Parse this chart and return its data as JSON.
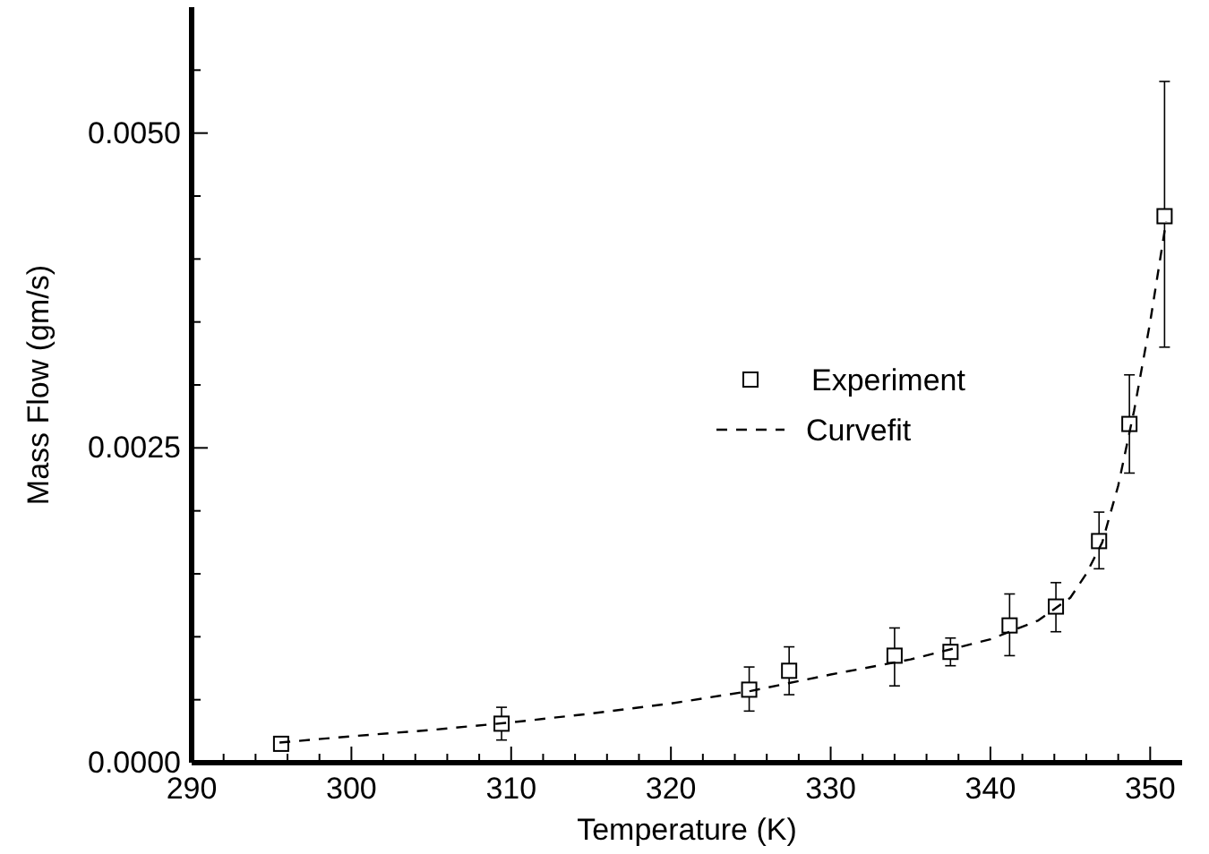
{
  "chart_data": {
    "type": "scatter",
    "xlabel": "Temperature (K)",
    "ylabel": "Mass Flow (gm/s)",
    "xlim": [
      290,
      352
    ],
    "xticks": [
      290,
      {
        "value": 292,
        "label": null
      },
      {
        "value": 294,
        "label": null
      },
      {
        "value": 296,
        "label": null
      },
      {
        "value": 298,
        "label": null
      },
      300,
      {
        "value": 302,
        "label": null
      },
      {
        "value": 304,
        "label": null
      },
      {
        "value": 306,
        "label": null
      },
      {
        "value": 308,
        "label": null
      },
      310,
      {
        "value": 312,
        "label": null
      },
      {
        "value": 314,
        "label": null
      },
      {
        "value": 316,
        "label": null
      },
      {
        "value": 318,
        "label": null
      },
      320,
      {
        "value": 322,
        "label": null
      },
      {
        "value": 324,
        "label": null
      },
      {
        "value": 326,
        "label": null
      },
      {
        "value": 328,
        "label": null
      },
      330,
      {
        "value": 332,
        "label": null
      },
      {
        "value": 334,
        "label": null
      },
      {
        "value": 336,
        "label": null
      },
      {
        "value": 338,
        "label": null
      },
      340,
      {
        "value": 342,
        "label": null
      },
      {
        "value": 344,
        "label": null
      },
      {
        "value": 346,
        "label": null
      },
      {
        "value": 348,
        "label": null
      },
      350
    ],
    "ylim": [
      0,
      0.006
    ],
    "yticks": [
      {
        "value": 0,
        "label": "0.0000"
      },
      {
        "value": 0.0005,
        "label": null
      },
      {
        "value": 0.001,
        "label": null
      },
      {
        "value": 0.0015,
        "label": null
      },
      {
        "value": 0.002,
        "label": null
      },
      {
        "value": 0.0025,
        "label": "0.0025"
      },
      {
        "value": 0.003,
        "label": null
      },
      {
        "value": 0.0035,
        "label": null
      },
      {
        "value": 0.004,
        "label": null
      },
      {
        "value": 0.0045,
        "label": null
      },
      {
        "value": 0.005,
        "label": "0.0050"
      },
      {
        "value": 0.0055,
        "label": null
      }
    ],
    "grid": false,
    "legend": "right",
    "series": [
      {
        "name": "Experiment",
        "marker": "square",
        "color": "#000000",
        "x": [
          295.6,
          309.4,
          324.9,
          327.4,
          334.0,
          337.5,
          341.2,
          344.1,
          346.8,
          348.7,
          350.9
        ],
        "values": [
          0.00015,
          0.00031,
          0.00058,
          0.00073,
          0.00085,
          0.00088,
          0.00109,
          0.00124,
          0.00176,
          0.00269,
          0.00434
        ],
        "errors": [
          null,
          [
            0.00018,
            0.00044
          ],
          [
            0.00041,
            0.00076
          ],
          [
            0.00054,
            0.00092
          ],
          [
            0.00061,
            0.00107
          ],
          [
            0.00077,
            0.00099
          ],
          [
            0.00085,
            0.00134
          ],
          [
            0.00104,
            0.00143
          ],
          [
            0.00154,
            0.00199
          ],
          [
            0.0023,
            0.00308
          ],
          [
            0.0033,
            0.00541
          ]
        ]
      },
      {
        "name": "Curvefit",
        "type": "line",
        "line_style": "dashed",
        "marker": "none",
        "color": "#000000",
        "x": [
          295.5,
          300,
          305,
          310,
          315,
          320,
          325,
          330,
          335,
          340,
          343,
          345,
          346,
          347,
          348,
          349,
          350,
          351
        ],
        "values": [
          0.00016,
          0.00021,
          0.00026,
          0.00032,
          0.00039,
          0.00047,
          0.00057,
          0.0007,
          0.00082,
          0.00098,
          0.00113,
          0.00131,
          0.0015,
          0.00175,
          0.0022,
          0.0028,
          0.0035,
          0.0043
        ]
      }
    ]
  }
}
